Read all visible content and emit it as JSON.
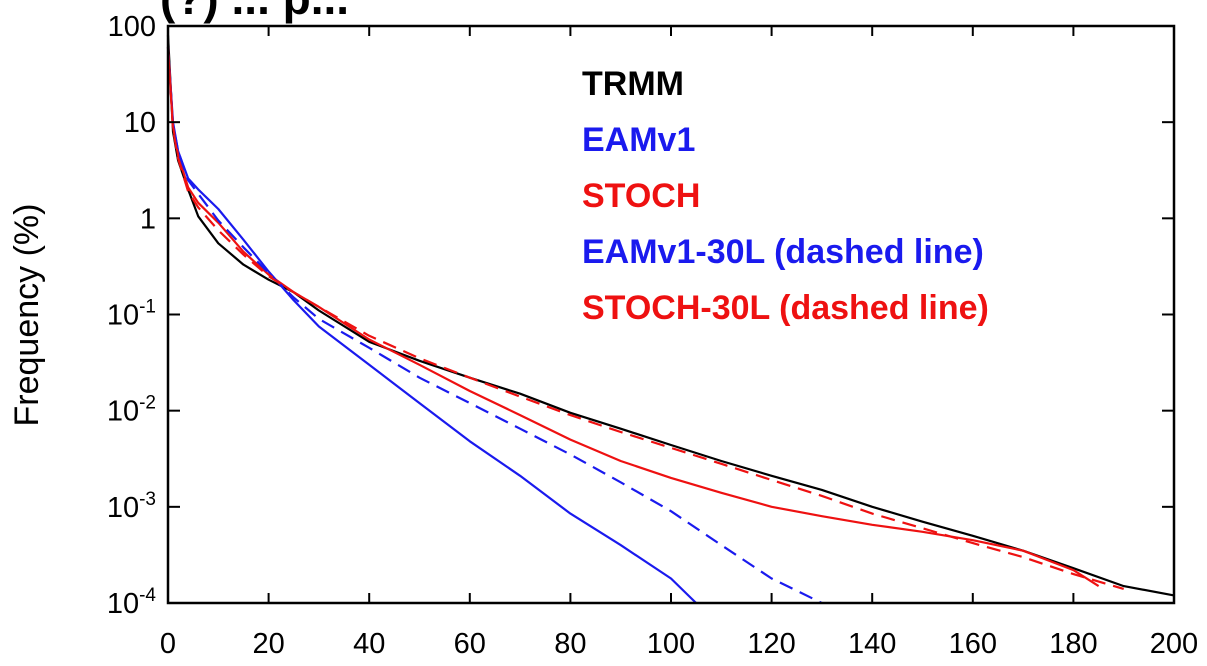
{
  "chart_data": {
    "type": "line",
    "title": "(?) ... p...",
    "xlabel": "",
    "ylabel": "Frequency (%)",
    "xlim": [
      0,
      200
    ],
    "ylim_log10": [
      -4,
      2
    ],
    "yscale": "log",
    "x_ticks": [
      "0",
      "20",
      "40",
      "60",
      "80",
      "100",
      "120",
      "140",
      "160",
      "180",
      "200"
    ],
    "y_ticks": [
      {
        "base": "100",
        "exp": ""
      },
      {
        "base": "10",
        "exp": ""
      },
      {
        "base": "1",
        "exp": ""
      },
      {
        "base": "10",
        "exp": "-1"
      },
      {
        "base": "10",
        "exp": "-2"
      },
      {
        "base": "10",
        "exp": "-3"
      },
      {
        "base": "10",
        "exp": "-4"
      }
    ],
    "grid": false,
    "legend_placement": "top-right",
    "legend": [
      {
        "label": "TRMM",
        "color": "#000000"
      },
      {
        "label": "EAMv1",
        "color": "#1a1aee"
      },
      {
        "label": "STOCH",
        "color": "#ee1111"
      },
      {
        "label": "EAMv1-30L (dashed line)",
        "color": "#1a1aee"
      },
      {
        "label": "STOCH-30L (dashed line)",
        "color": "#ee1111"
      }
    ],
    "series": [
      {
        "name": "TRMM",
        "color": "#000000",
        "style": "solid",
        "points": [
          [
            0,
            80
          ],
          [
            1,
            8
          ],
          [
            2,
            4
          ],
          [
            4,
            2
          ],
          [
            6,
            1.05
          ],
          [
            10,
            0.55
          ],
          [
            15,
            0.33
          ],
          [
            20,
            0.23
          ],
          [
            25,
            0.17
          ],
          [
            30,
            0.11
          ],
          [
            40,
            0.052
          ],
          [
            50,
            0.033
          ],
          [
            60,
            0.022
          ],
          [
            70,
            0.015
          ],
          [
            80,
            0.0095
          ],
          [
            90,
            0.0065
          ],
          [
            100,
            0.0044
          ],
          [
            110,
            0.003
          ],
          [
            120,
            0.0021
          ],
          [
            130,
            0.0015
          ],
          [
            140,
            0.001
          ],
          [
            150,
            0.0007
          ],
          [
            160,
            0.0005
          ],
          [
            170,
            0.00035
          ],
          [
            180,
            0.00023
          ],
          [
            190,
            0.00015
          ],
          [
            200,
            0.00012
          ]
        ]
      },
      {
        "name": "EAMv1",
        "color": "#1a1aee",
        "style": "solid",
        "points": [
          [
            0,
            60
          ],
          [
            1,
            10
          ],
          [
            2,
            5
          ],
          [
            4,
            2.6
          ],
          [
            6,
            2
          ],
          [
            10,
            1.25
          ],
          [
            15,
            0.6
          ],
          [
            20,
            0.28
          ],
          [
            25,
            0.14
          ],
          [
            30,
            0.075
          ],
          [
            40,
            0.03
          ],
          [
            50,
            0.012
          ],
          [
            60,
            0.0048
          ],
          [
            70,
            0.0021
          ],
          [
            80,
            0.00085
          ],
          [
            90,
            0.0004
          ],
          [
            100,
            0.00018
          ],
          [
            105,
            0.0001
          ]
        ]
      },
      {
        "name": "STOCH",
        "color": "#ee1111",
        "style": "solid",
        "points": [
          [
            0,
            60
          ],
          [
            1,
            9
          ],
          [
            2,
            4.5
          ],
          [
            4,
            2.1
          ],
          [
            6,
            1.45
          ],
          [
            10,
            0.9
          ],
          [
            15,
            0.45
          ],
          [
            20,
            0.26
          ],
          [
            25,
            0.17
          ],
          [
            30,
            0.12
          ],
          [
            40,
            0.055
          ],
          [
            50,
            0.03
          ],
          [
            60,
            0.016
          ],
          [
            70,
            0.009
          ],
          [
            80,
            0.005
          ],
          [
            90,
            0.003
          ],
          [
            100,
            0.002
          ],
          [
            110,
            0.0014
          ],
          [
            120,
            0.001
          ],
          [
            130,
            0.0008
          ],
          [
            140,
            0.00065
          ],
          [
            150,
            0.00055
          ],
          [
            160,
            0.00045
          ],
          [
            170,
            0.00035
          ],
          [
            180,
            0.00022
          ],
          [
            185,
            0.00015
          ]
        ]
      },
      {
        "name": "EAMv1-30L",
        "color": "#1a1aee",
        "style": "dashed",
        "points": [
          [
            0,
            60
          ],
          [
            1,
            9.5
          ],
          [
            2,
            5
          ],
          [
            4,
            2.5
          ],
          [
            6,
            1.8
          ],
          [
            10,
            0.95
          ],
          [
            15,
            0.5
          ],
          [
            20,
            0.27
          ],
          [
            25,
            0.15
          ],
          [
            30,
            0.09
          ],
          [
            40,
            0.045
          ],
          [
            50,
            0.022
          ],
          [
            60,
            0.012
          ],
          [
            70,
            0.0065
          ],
          [
            80,
            0.0035
          ],
          [
            90,
            0.0018
          ],
          [
            100,
            0.0009
          ],
          [
            110,
            0.0004
          ],
          [
            120,
            0.00018
          ],
          [
            130,
            0.0001
          ]
        ]
      },
      {
        "name": "STOCH-30L",
        "color": "#ee1111",
        "style": "dashed",
        "points": [
          [
            0,
            60
          ],
          [
            1,
            8.5
          ],
          [
            2,
            4.2
          ],
          [
            4,
            1.9
          ],
          [
            6,
            1.3
          ],
          [
            10,
            0.75
          ],
          [
            15,
            0.42
          ],
          [
            20,
            0.25
          ],
          [
            25,
            0.17
          ],
          [
            30,
            0.12
          ],
          [
            40,
            0.06
          ],
          [
            50,
            0.035
          ],
          [
            60,
            0.022
          ],
          [
            70,
            0.014
          ],
          [
            80,
            0.009
          ],
          [
            90,
            0.006
          ],
          [
            100,
            0.0041
          ],
          [
            110,
            0.0028
          ],
          [
            120,
            0.0019
          ],
          [
            130,
            0.0013
          ],
          [
            140,
            0.00085
          ],
          [
            150,
            0.0006
          ],
          [
            160,
            0.00042
          ],
          [
            170,
            0.0003
          ],
          [
            180,
            0.0002
          ],
          [
            190,
            0.00014
          ]
        ]
      }
    ]
  }
}
